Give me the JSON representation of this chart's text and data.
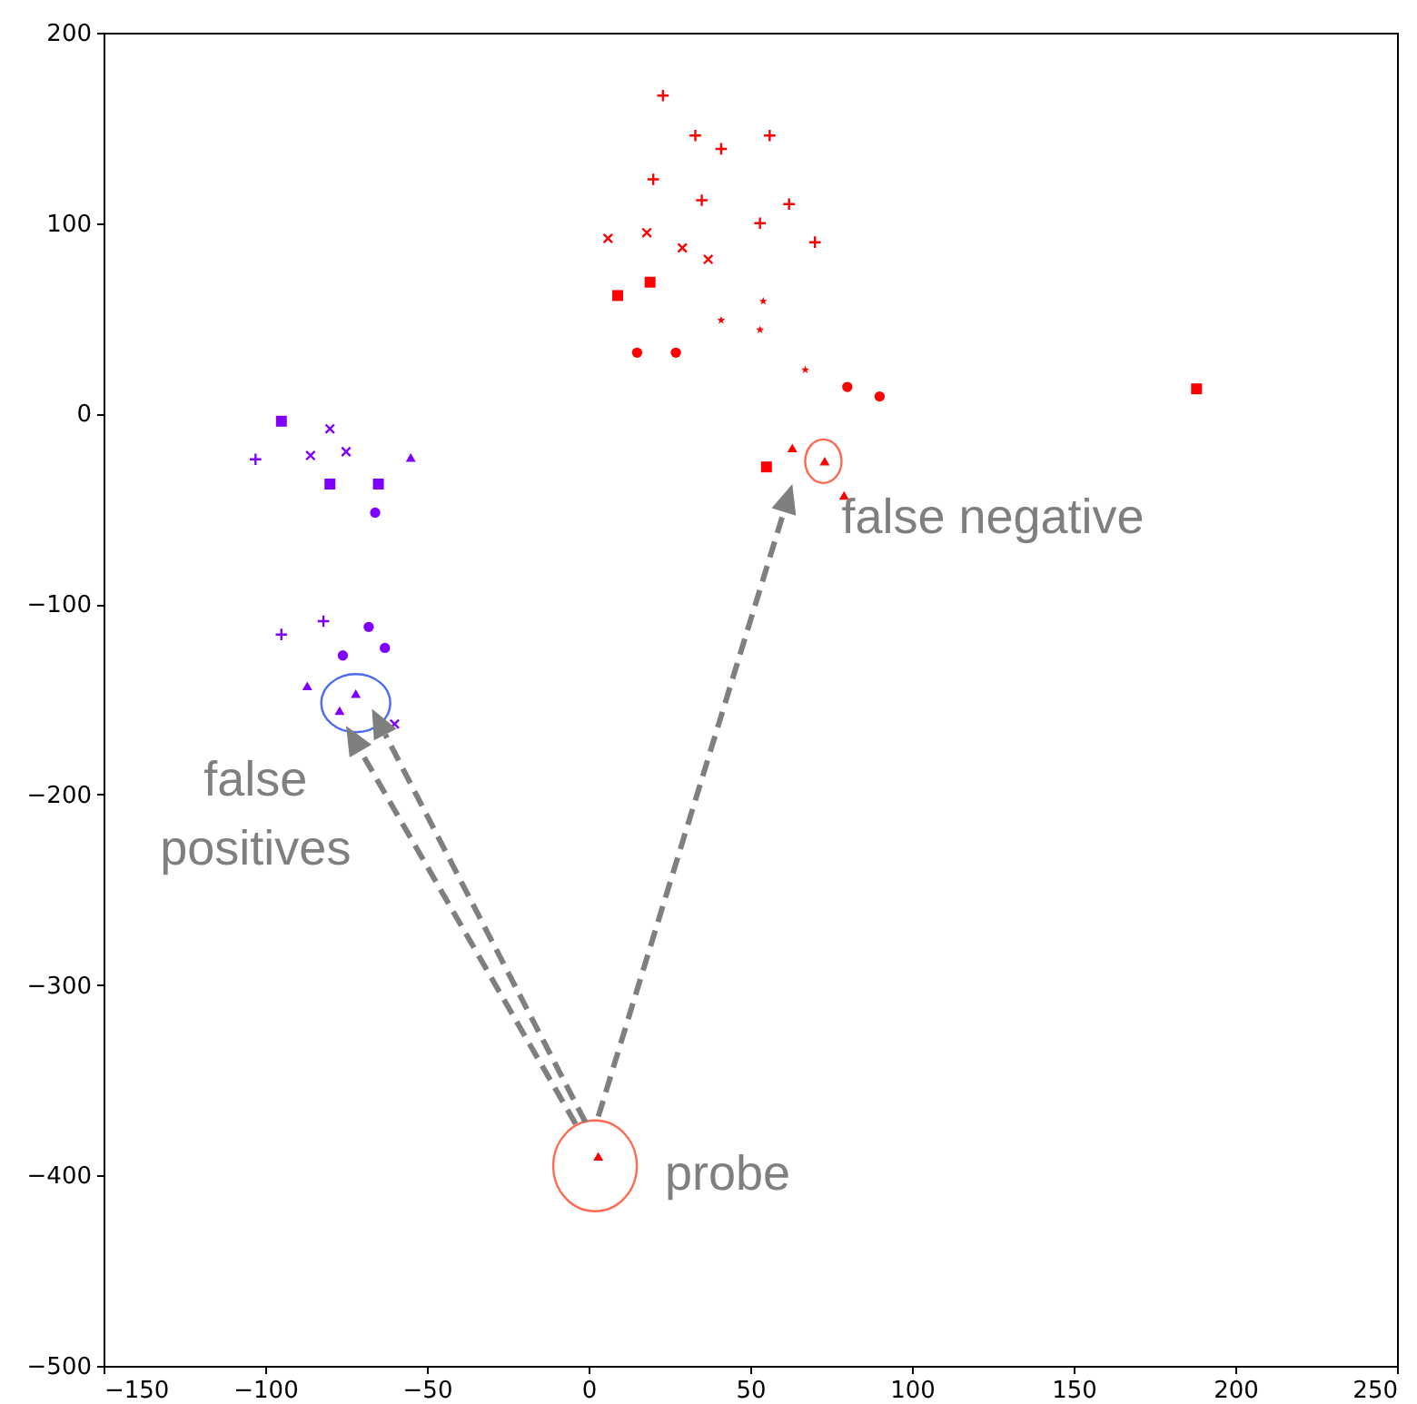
{
  "chart_data": {
    "type": "scatter",
    "xlim": [
      -150,
      250
    ],
    "ylim": [
      -500,
      200
    ],
    "xticks": [
      -150,
      -100,
      -50,
      0,
      50,
      100,
      150,
      200,
      250
    ],
    "yticks": [
      -500,
      -400,
      -300,
      -200,
      -100,
      0,
      100,
      200
    ],
    "grid": false,
    "series": [
      {
        "color": "#ff0000",
        "marker": "cross",
        "x": [
          23,
          33,
          41,
          56,
          20,
          35,
          62,
          53,
          70
        ],
        "values": [
          167,
          146,
          139,
          146,
          123,
          112,
          110,
          100,
          90
        ]
      },
      {
        "color": "#ff0000",
        "marker": "x",
        "x": [
          6,
          18,
          29,
          37
        ],
        "values": [
          92,
          95,
          87,
          81
        ]
      },
      {
        "color": "#ff0000",
        "marker": "square",
        "x": [
          9,
          19,
          188,
          55
        ],
        "values": [
          62,
          69,
          13,
          -28
        ]
      },
      {
        "color": "#ff0000",
        "marker": "star",
        "x": [
          54,
          41,
          53,
          67
        ],
        "values": [
          59,
          49,
          44,
          23
        ]
      },
      {
        "color": "#ff0000",
        "marker": "circle",
        "x": [
          15,
          27,
          80,
          90
        ],
        "values": [
          32,
          32,
          14,
          9
        ]
      },
      {
        "color": "#ff0000",
        "marker": "triangle",
        "x": [
          63,
          79,
          73,
          3
        ],
        "values": [
          -18,
          -43,
          -25,
          -390
        ]
      },
      {
        "color": "#8000ff",
        "marker": "square",
        "x": [
          -95,
          -80,
          -65
        ],
        "values": [
          -4,
          -37,
          -37
        ]
      },
      {
        "color": "#8000ff",
        "marker": "x",
        "x": [
          -80,
          -86,
          -75,
          -60
        ],
        "values": [
          -8,
          -22,
          -20,
          -163
        ]
      },
      {
        "color": "#8000ff",
        "marker": "cross",
        "x": [
          -103,
          -95,
          -82
        ],
        "values": [
          -24,
          -116,
          -109
        ]
      },
      {
        "color": "#8000ff",
        "marker": "triangle",
        "x": [
          -55,
          -87,
          -72,
          -77
        ],
        "values": [
          -23,
          -143,
          -147,
          -156
        ]
      },
      {
        "color": "#8000ff",
        "marker": "circle",
        "x": [
          -66,
          -68,
          -63,
          -76
        ],
        "values": [
          -52,
          -112,
          -123,
          -127
        ]
      }
    ],
    "annotations": [
      "false negative",
      "false\npositives",
      "probe"
    ]
  }
}
